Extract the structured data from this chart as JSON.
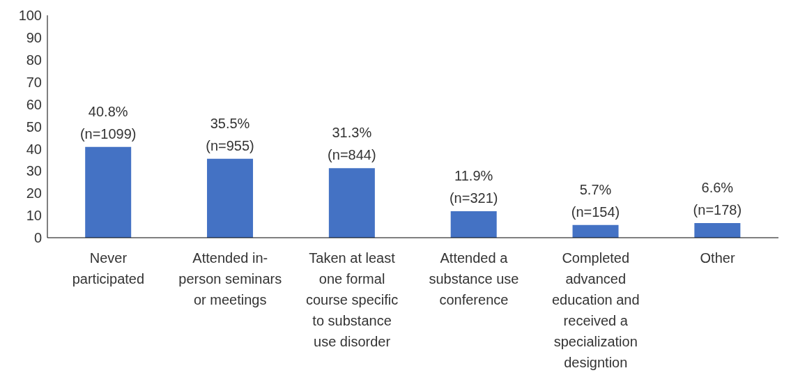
{
  "chart_data": {
    "type": "bar",
    "categories": [
      "Never participated",
      "Attended in-person seminars or meetings",
      "Taken at least one formal course specific to substance use disorder",
      "Attended a substance use conference",
      "Completed advanced education and received a specialization designtion",
      "Other"
    ],
    "values": [
      40.8,
      35.5,
      31.3,
      11.9,
      5.7,
      6.6
    ],
    "value_labels": [
      "40.8% (n=1099)",
      "35.5% (n=955)",
      "31.3% (n=844)",
      "11.9% (n=321)",
      "5.7% (n=154)",
      "6.6% (n=178)"
    ],
    "color": "#4472c4",
    "ylim": [
      0,
      100
    ],
    "yticks": [
      0,
      10,
      20,
      30,
      40,
      50,
      60,
      70,
      80,
      90,
      100
    ],
    "grid": false,
    "legend": false
  }
}
